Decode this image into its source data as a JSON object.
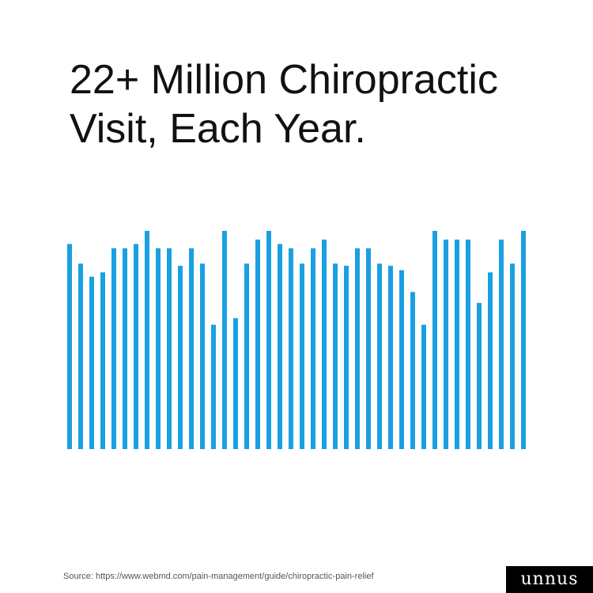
{
  "headline": {
    "line1": "22+ Million Chiropractic",
    "line2": "Visit, Each Year."
  },
  "source_text": "Source: https://www.webmd.com/pain-management/guide/chiropractic-pain-relief",
  "logo_text": "unnus",
  "colors": {
    "bar": "#1aa0e2",
    "text": "#111111",
    "logo_bg": "#000000"
  },
  "chart_data": {
    "type": "bar",
    "title": "",
    "xlabel": "",
    "ylabel": "",
    "ylim": [
      0,
      100
    ],
    "grid": false,
    "values": [
      94,
      85,
      79,
      81,
      92,
      92,
      94,
      100,
      92,
      92,
      84,
      92,
      85,
      57,
      100,
      60,
      85,
      96,
      100,
      94,
      92,
      85,
      92,
      96,
      85,
      84,
      92,
      92,
      85,
      84,
      82,
      72,
      57,
      100,
      96,
      96,
      96,
      67,
      81,
      96,
      85,
      100
    ]
  }
}
